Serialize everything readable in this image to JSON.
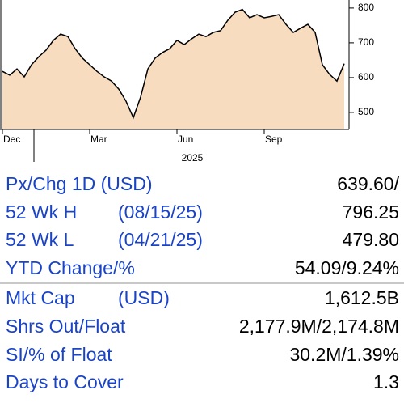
{
  "chart_data": {
    "type": "area",
    "color": "#f8dcc0",
    "line_color": "#000000",
    "categories": [
      "Dec",
      null,
      null,
      null,
      null,
      null,
      null,
      null,
      null,
      null,
      null,
      null,
      "Mar",
      null,
      null,
      null,
      null,
      null,
      null,
      null,
      null,
      null,
      null,
      null,
      "Jun",
      null,
      null,
      null,
      null,
      null,
      null,
      null,
      null,
      null,
      null,
      null,
      "Sep",
      null,
      null,
      null,
      null,
      null,
      null,
      null,
      null,
      null,
      null,
      null
    ],
    "year_label": "2025",
    "values": [
      618,
      607,
      625,
      602,
      637,
      660,
      679,
      707,
      725,
      718,
      683,
      656,
      637,
      618,
      602,
      590,
      567,
      532,
      485,
      544,
      625,
      656,
      672,
      683,
      707,
      695,
      711,
      725,
      718,
      730,
      735,
      765,
      788,
      796,
      772,
      781,
      772,
      776,
      781,
      753,
      730,
      742,
      753,
      730,
      637,
      609,
      590,
      640
    ],
    "ylim": [
      451,
      823
    ],
    "yticks": [
      500,
      600,
      700,
      800
    ]
  },
  "table": {
    "rows": [
      {
        "label": "Px/Chg 1D (USD)",
        "value": "639.60/"
      },
      {
        "label": "52 Wk H",
        "qualifier": "(08/15/25)",
        "value": "796.25"
      },
      {
        "label": "52 Wk L",
        "qualifier": "(04/21/25)",
        "value": "479.80"
      },
      {
        "label": "YTD Change/%",
        "value": "54.09/9.24%"
      },
      {
        "label": "Mkt Cap",
        "qualifier": "(USD)",
        "value": "1,612.5B"
      },
      {
        "label": "Shrs Out/Float",
        "value": "2,177.9M/2,174.8M"
      },
      {
        "label": "SI/% of Float",
        "value": "30.2M/1.39%"
      },
      {
        "label": "Days to Cover",
        "value": "1.3"
      }
    ]
  }
}
